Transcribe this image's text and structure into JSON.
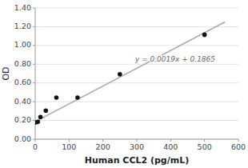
{
  "chart_data": {
    "type": "scatter",
    "xlabel": "Human CCL2 (pg/mL)",
    "ylabel": "OD",
    "series": [
      {
        "type": "scatter",
        "color": "#111111",
        "marker": "circle",
        "x": [
          0,
          7.8,
          15.6,
          31.25,
          62.5,
          125,
          250,
          500
        ],
        "values": [
          0.178,
          0.185,
          0.237,
          0.305,
          0.444,
          0.444,
          0.693,
          1.115
        ]
      },
      {
        "type": "line",
        "color": "#aaaaaa",
        "line_style": "solid",
        "x": [
          0,
          560
        ],
        "values": [
          0.1865,
          1.2505
        ]
      }
    ],
    "annotations": [
      {
        "text": "y = 0.0019x + 0.1865",
        "x": 295,
        "y": 0.85
      }
    ],
    "xlim": [
      0,
      600
    ],
    "ylim": [
      0,
      1.4
    ],
    "xticks": [
      0,
      100,
      200,
      300,
      400,
      500,
      600
    ],
    "yticks": [
      {
        "value": 0,
        "label": "0.00"
      },
      {
        "value": 0.2,
        "label": "0.20"
      },
      {
        "value": 0.4,
        "label": "0.40"
      },
      {
        "value": 0.6,
        "label": "0.60"
      },
      {
        "value": 0.8,
        "label": "0.80"
      },
      {
        "value": 1.0,
        "label": "1.00"
      },
      {
        "value": 1.2,
        "label": "1.20"
      },
      {
        "value": 1.4,
        "label": "1.40"
      }
    ],
    "grid": true
  }
}
